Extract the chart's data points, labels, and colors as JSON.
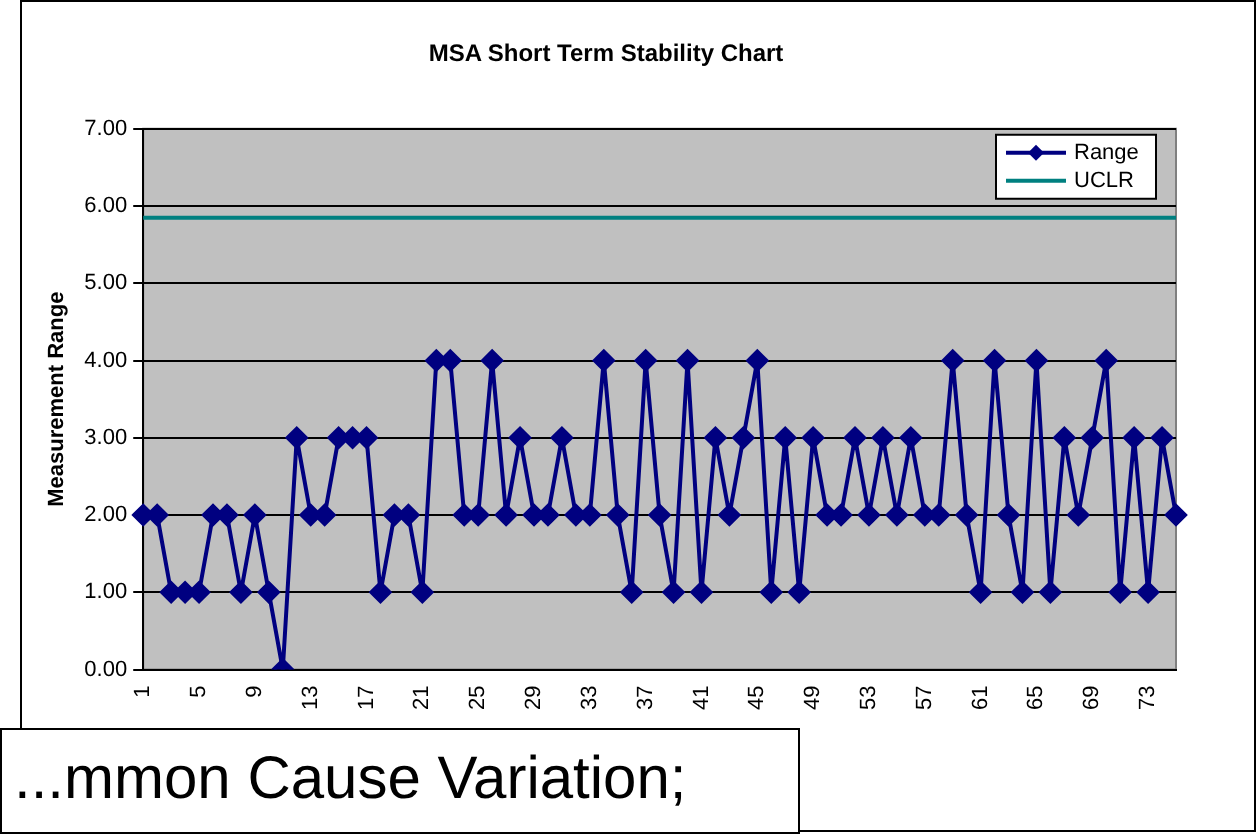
{
  "chart_data": {
    "type": "line",
    "title": "MSA Short Term Stability Chart",
    "ylabel": "Measurement Range",
    "categories": [
      "1",
      null,
      null,
      null,
      "5",
      null,
      null,
      null,
      "9",
      null,
      null,
      null,
      "13",
      null,
      null,
      null,
      "17",
      null,
      null,
      null,
      "21",
      null,
      null,
      null,
      "25",
      null,
      null,
      null,
      "29",
      null,
      null,
      null,
      "33",
      null,
      null,
      null,
      "37",
      null,
      null,
      null,
      "41",
      null,
      null,
      null,
      "45",
      null,
      null,
      null,
      "49",
      null,
      null,
      null,
      "53",
      null,
      null,
      null,
      "57",
      null,
      null,
      null,
      "61",
      null,
      null,
      null,
      "65",
      null,
      null,
      null,
      "69",
      null,
      null,
      null,
      "73",
      null,
      null
    ],
    "series": [
      {
        "name": "Range",
        "color": "#000080",
        "marker": "diamond",
        "values": [
          2,
          2,
          1,
          1,
          1,
          2,
          2,
          1,
          2,
          1,
          0,
          3,
          2,
          2,
          3,
          3,
          3,
          1,
          2,
          2,
          1,
          4,
          4,
          2,
          2,
          4,
          2,
          3,
          2,
          2,
          3,
          2,
          2,
          4,
          2,
          1,
          4,
          2,
          1,
          4,
          1,
          3,
          2,
          3,
          4,
          1,
          3,
          1,
          3,
          2,
          2,
          3,
          2,
          3,
          2,
          3,
          2,
          2,
          4,
          2,
          1,
          4,
          2,
          1,
          4,
          1,
          3,
          2,
          3,
          4,
          1,
          3,
          1,
          3,
          2
        ]
      },
      {
        "name": "UCLR",
        "color": "#008080",
        "marker": "none",
        "values": [
          5.85,
          5.85,
          5.85,
          5.85,
          5.85,
          5.85,
          5.85,
          5.85,
          5.85,
          5.85,
          5.85,
          5.85,
          5.85,
          5.85,
          5.85,
          5.85,
          5.85,
          5.85,
          5.85,
          5.85,
          5.85,
          5.85,
          5.85,
          5.85,
          5.85,
          5.85,
          5.85,
          5.85,
          5.85,
          5.85,
          5.85,
          5.85,
          5.85,
          5.85,
          5.85,
          5.85,
          5.85,
          5.85,
          5.85,
          5.85,
          5.85,
          5.85,
          5.85,
          5.85,
          5.85,
          5.85,
          5.85,
          5.85,
          5.85,
          5.85,
          5.85,
          5.85,
          5.85,
          5.85,
          5.85,
          5.85,
          5.85,
          5.85,
          5.85,
          5.85,
          5.85,
          5.85,
          5.85,
          5.85,
          5.85,
          5.85,
          5.85,
          5.85,
          5.85,
          5.85,
          5.85,
          5.85,
          5.85,
          5.85,
          5.85
        ]
      }
    ],
    "ylim": [
      0,
      7
    ],
    "yticks": [
      {
        "value": 0,
        "label": "0.00"
      },
      {
        "value": 1,
        "label": "1.00"
      },
      {
        "value": 2,
        "label": "2.00"
      },
      {
        "value": 3,
        "label": "3.00"
      },
      {
        "value": 4,
        "label": "4.00"
      },
      {
        "value": 5,
        "label": "5.00"
      },
      {
        "value": 6,
        "label": "6.00"
      },
      {
        "value": 7,
        "label": "7.00"
      }
    ],
    "grid": "y",
    "legend": "top right",
    "annotations": [
      "...mmon Cause Variation;"
    ]
  }
}
